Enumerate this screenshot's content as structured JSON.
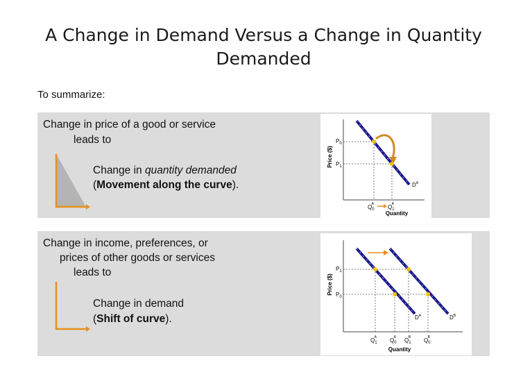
{
  "slide": {
    "title_line1": "A Change in Demand Versus a Change in Quantity",
    "title_line2": "Demanded",
    "summary": "To summarize:"
  },
  "panel1": {
    "line1": "Change in price of a good or service",
    "line2": "leads to",
    "result_prefix": "Change in ",
    "result_italic": "quantity demanded",
    "paren_open": "(",
    "result_bold": "Movement along the curve",
    "paren_close": ").",
    "graph": {
      "y_axis_label": "Price ($)",
      "x_axis_label": "Quantity",
      "price_labels": [
        "P0",
        "P1"
      ],
      "quantity_labels": [
        "Q0A",
        "Q1A"
      ],
      "curve_label": "DA"
    }
  },
  "panel2": {
    "line1": "Change in income, preferences, or",
    "line2": "prices of other goods or services",
    "line3": "leads to",
    "result_prefix": "Change in demand",
    "paren_open": "(",
    "result_bold": "Shift of curve",
    "paren_close": ").",
    "graph": {
      "y_axis_label": "Price ($)",
      "x_axis_label": "Quantity",
      "price_labels": [
        "P1",
        "P0"
      ],
      "quantity_labels": [
        "Q1A",
        "Q0A",
        "Q1B",
        "Q0B"
      ],
      "curve_labels": [
        "DA",
        "DB"
      ]
    }
  },
  "colors": {
    "panel_bg": "#dcdcdc",
    "curve": "#1a1a8c",
    "accent_orange": "#e8901e",
    "point_yellow": "#f2c200",
    "wedge_gray": "#b4b4b4"
  }
}
